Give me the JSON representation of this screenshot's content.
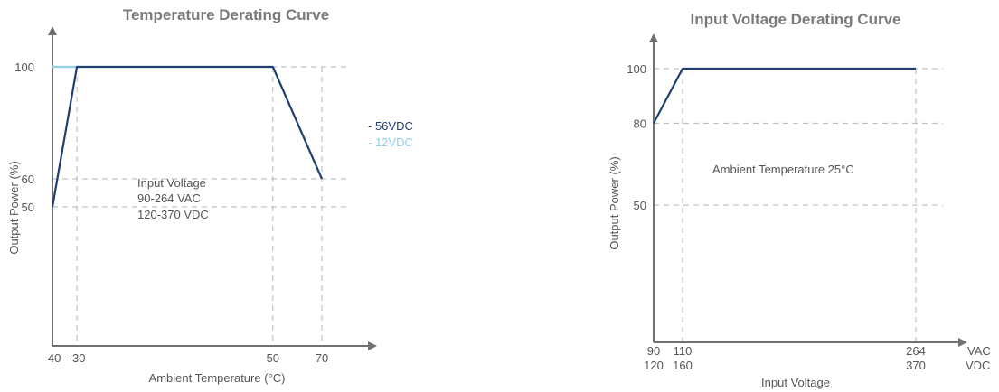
{
  "colors": {
    "series_56vdc": "#1f3f70",
    "series_12vdc": "#8fd0ef",
    "axis": "#707070",
    "grid": "#b5b5b5",
    "text": "#555555",
    "title": "#7a7a7a"
  },
  "chart_data": [
    {
      "type": "line",
      "title": "Temperature Derating Curve",
      "xlabel": "Ambient Temperature (°C)",
      "ylabel": "Output Power (%)",
      "x_ticks": [
        -40,
        -30,
        50,
        70
      ],
      "x_tick_labels": [
        "-40",
        "-30",
        "50",
        "70"
      ],
      "y_ticks": [
        50,
        60,
        100
      ],
      "y_tick_labels": [
        "50",
        "60",
        "100"
      ],
      "xlim": [
        -40,
        85
      ],
      "ylim": [
        0,
        115
      ],
      "grid": "dashed at tick values",
      "legend": "right",
      "series": [
        {
          "name": "56VDC",
          "x": [
            -40,
            -30,
            50,
            70
          ],
          "y": [
            50,
            100,
            100,
            60
          ]
        },
        {
          "name": "12VDC",
          "x": [
            -40,
            -30
          ],
          "y": [
            100,
            100
          ]
        }
      ],
      "legend_entries": [
        "- 56VDC",
        "- 12VDC"
      ],
      "annotation": [
        "Input Voltage",
        "90-264 VAC",
        "120-370 VDC"
      ]
    },
    {
      "type": "line",
      "title": "Input Voltage Derating Curve",
      "xlabel": "Input Voltage",
      "ylabel": "Output Power (%)",
      "x_ticks": [
        90,
        110,
        264
      ],
      "x_tick_labels_vac": [
        "90",
        "110",
        "264"
      ],
      "x_tick_labels_vdc": [
        "120",
        "160",
        "370"
      ],
      "x_unit_labels": [
        "VAC",
        "VDC"
      ],
      "y_ticks": [
        50,
        80,
        100
      ],
      "y_tick_labels": [
        "50",
        "80",
        "100"
      ],
      "xlim": [
        90,
        280
      ],
      "ylim": [
        0,
        115
      ],
      "grid": "dashed at tick values",
      "series": [
        {
          "x": [
            90,
            110,
            264
          ],
          "y": [
            80,
            100,
            100
          ]
        }
      ],
      "annotation": [
        "Ambient Temperature 25°C"
      ]
    }
  ]
}
